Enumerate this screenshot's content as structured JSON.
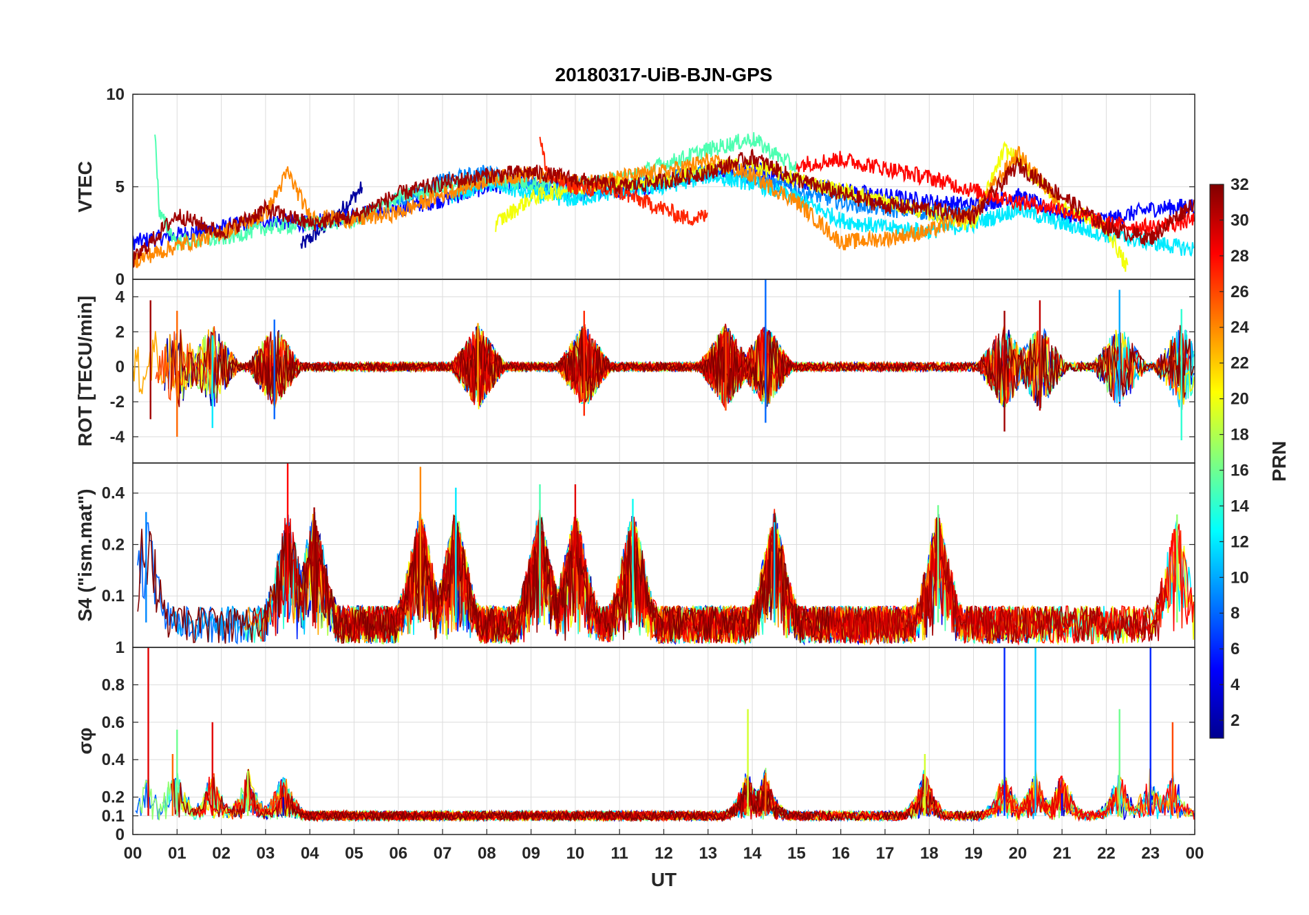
{
  "title": "20180317-UiB-BJN-GPS",
  "xlabel": "UT",
  "x_ticks": [
    "00",
    "01",
    "02",
    "03",
    "04",
    "05",
    "06",
    "07",
    "08",
    "09",
    "10",
    "11",
    "12",
    "13",
    "14",
    "15",
    "16",
    "17",
    "18",
    "19",
    "20",
    "21",
    "22",
    "23",
    "00"
  ],
  "colorbar": {
    "label": "PRN",
    "range": [
      1,
      32
    ],
    "ticks": [
      "2",
      "4",
      "6",
      "8",
      "10",
      "12",
      "14",
      "16",
      "18",
      "20",
      "22",
      "24",
      "26",
      "28",
      "30",
      "32"
    ],
    "colormap": "jet"
  },
  "chart_data": [
    {
      "type": "line",
      "panel": "VTEC",
      "ylabel": "VTEC",
      "ylim": [
        0,
        10
      ],
      "y_ticks": [
        "0",
        "5",
        "10"
      ],
      "x_unit": "hours UT",
      "grid": true,
      "series_note": "Multiple PRN traces colored by PRN number (colorbar)",
      "series": [
        {
          "prn": 2,
          "x": [
            3.8,
            4.5,
            5.2
          ],
          "y": [
            1.8,
            3.2,
            5.0
          ]
        },
        {
          "prn": 5,
          "x": [
            0,
            1,
            2,
            3,
            4,
            5,
            6,
            7,
            8,
            9,
            10,
            11,
            12,
            13,
            14,
            15,
            16,
            17,
            18,
            19,
            20,
            21,
            22,
            23,
            24
          ],
          "y": [
            2.0,
            2.4,
            2.8,
            3.2,
            3.0,
            3.5,
            3.8,
            4.3,
            5.0,
            5.2,
            5.0,
            4.8,
            5.2,
            5.8,
            6.0,
            5.2,
            4.8,
            4.5,
            4.2,
            4.0,
            4.5,
            3.5,
            3.2,
            3.8,
            4.0
          ]
        },
        {
          "prn": 9,
          "x": [
            5.9,
            7,
            8,
            9,
            10,
            11,
            12,
            13,
            14,
            15,
            16,
            17,
            18,
            19
          ],
          "y": [
            4.2,
            5.3,
            5.8,
            5.0,
            4.6,
            5.0,
            5.4,
            5.8,
            5.5,
            4.8,
            4.2,
            3.8,
            3.6,
            3.5
          ]
        },
        {
          "prn": 12,
          "x": [
            7.2,
            8,
            9,
            10,
            11,
            12,
            13,
            14,
            15,
            16,
            17,
            18,
            19,
            20,
            21,
            22,
            23,
            24
          ],
          "y": [
            4.5,
            5.2,
            4.6,
            4.3,
            4.8,
            5.0,
            5.6,
            5.2,
            4.4,
            3.2,
            2.8,
            2.6,
            3.0,
            3.8,
            3.0,
            2.4,
            2.0,
            1.6
          ]
        },
        {
          "prn": 15,
          "x": [
            0.5,
            0.6,
            1,
            2,
            3,
            4,
            5,
            6,
            7,
            8,
            9,
            10,
            11,
            12,
            13,
            14,
            15
          ],
          "y": [
            8.2,
            3.5,
            2.0,
            2.2,
            2.8,
            3.0,
            3.2,
            4.4,
            5.0,
            5.4,
            5.2,
            5.0,
            5.4,
            6.2,
            7.0,
            7.6,
            6.0
          ]
        },
        {
          "prn": 20,
          "x": [
            8.2,
            9,
            10,
            11,
            12,
            13,
            14,
            15,
            16,
            17,
            18,
            19,
            19.7,
            20,
            21,
            22,
            22.5
          ],
          "y": [
            3.0,
            4.4,
            5.0,
            5.2,
            5.4,
            6.0,
            6.2,
            5.4,
            4.8,
            4.2,
            3.6,
            3.0,
            7.0,
            6.5,
            4.0,
            2.8,
            0.5
          ]
        },
        {
          "prn": 24,
          "x": [
            0,
            1,
            2,
            3,
            3.5,
            4,
            5,
            6,
            7,
            8,
            9,
            10,
            11,
            12,
            13,
            14,
            15,
            16,
            17,
            18,
            19,
            20,
            21
          ],
          "y": [
            1.0,
            1.8,
            2.5,
            3.5,
            5.8,
            3.4,
            3.2,
            3.6,
            4.6,
            5.4,
            5.7,
            5.2,
            5.5,
            5.8,
            6.4,
            5.6,
            4.2,
            2.0,
            2.2,
            2.6,
            3.6,
            6.8,
            4.0
          ]
        },
        {
          "prn": 27,
          "x": [
            9.2,
            9.4,
            10,
            11,
            12,
            12.5,
            13
          ],
          "y": [
            7.5,
            5.5,
            5.0,
            4.7,
            3.8,
            3.3,
            3.4
          ]
        },
        {
          "prn": 28,
          "x": [
            15,
            16,
            17,
            18,
            19,
            20,
            21,
            22,
            23,
            24
          ],
          "y": [
            6.2,
            6.5,
            6.0,
            5.5,
            4.8,
            4.2,
            3.8,
            3.0,
            2.8,
            3.2
          ]
        },
        {
          "prn": 31,
          "x": [
            0,
            1,
            2,
            3,
            4,
            5,
            6,
            7,
            8,
            9,
            10,
            11,
            12,
            13,
            14,
            15,
            16,
            17,
            18,
            19,
            20,
            21,
            22,
            23,
            24
          ],
          "y": [
            1.0,
            3.5,
            2.5,
            3.8,
            3.0,
            3.4,
            4.6,
            5.2,
            5.6,
            5.8,
            5.4,
            5.0,
            5.3,
            5.8,
            6.6,
            5.4,
            4.6,
            4.0,
            3.8,
            3.4,
            6.2,
            4.5,
            2.8,
            2.2,
            4.2
          ]
        }
      ]
    },
    {
      "type": "line",
      "panel": "ROT",
      "ylabel": "ROT [TECU/min]",
      "ylim": [
        -5.5,
        5
      ],
      "y_ticks": [
        "-4",
        "-2",
        "0",
        "2",
        "4"
      ],
      "x_unit": "hours UT",
      "grid": true,
      "series_note": "Rate of TEC, fluctuating about 0 with bursts",
      "bursts": [
        {
          "x": 0.4,
          "y_min": -3.0,
          "y_max": 3.8
        },
        {
          "x": 1.0,
          "y_min": -4.0,
          "y_max": 3.2
        },
        {
          "x": 1.8,
          "y_min": -3.5,
          "y_max": 1.8
        },
        {
          "x": 3.2,
          "y_min": -3.0,
          "y_max": 2.7
        },
        {
          "x": 7.8,
          "y_min": -2.0,
          "y_max": 2.5
        },
        {
          "x": 10.2,
          "y_min": -2.8,
          "y_max": 3.2
        },
        {
          "x": 13.4,
          "y_min": -2.5,
          "y_max": 2.0
        },
        {
          "x": 14.3,
          "y_min": -3.2,
          "y_max": 5.0
        },
        {
          "x": 19.7,
          "y_min": -3.7,
          "y_max": 3.2
        },
        {
          "x": 20.5,
          "y_min": -2.5,
          "y_max": 3.8
        },
        {
          "x": 22.3,
          "y_min": -2.0,
          "y_max": 4.4
        },
        {
          "x": 23.7,
          "y_min": -4.2,
          "y_max": 3.3
        }
      ]
    },
    {
      "type": "line",
      "panel": "S4",
      "ylabel": "S4 (\"ism.mat\")",
      "ylim": [
        0.05,
        0.6
      ],
      "y_ticks": [
        "0.1",
        "0.2",
        "0.4"
      ],
      "y_scale": "log",
      "x_unit": "hours UT",
      "grid": true,
      "baseline": 0.07,
      "peaks": [
        {
          "x": 0.3,
          "y": 0.31
        },
        {
          "x": 3.5,
          "y": 0.6
        },
        {
          "x": 4.1,
          "y": 0.33
        },
        {
          "x": 6.5,
          "y": 0.57
        },
        {
          "x": 7.3,
          "y": 0.43
        },
        {
          "x": 9.2,
          "y": 0.45
        },
        {
          "x": 10.0,
          "y": 0.45
        },
        {
          "x": 11.3,
          "y": 0.37
        },
        {
          "x": 14.5,
          "y": 0.27
        },
        {
          "x": 18.2,
          "y": 0.34
        },
        {
          "x": 23.6,
          "y": 0.3
        }
      ]
    },
    {
      "type": "line",
      "panel": "sigma_phi",
      "ylabel": "σφ",
      "ylim": [
        0,
        1
      ],
      "y_ticks": [
        "0",
        "0.1",
        "0.2",
        "0.4",
        "0.6",
        "0.8",
        "1"
      ],
      "x_unit": "hours UT",
      "grid": true,
      "baseline": 0.1,
      "peaks": [
        {
          "x": 0.35,
          "y": 1.0
        },
        {
          "x": 1.0,
          "y": 0.56
        },
        {
          "x": 0.9,
          "y": 0.43
        },
        {
          "x": 1.8,
          "y": 0.6
        },
        {
          "x": 2.6,
          "y": 0.34
        },
        {
          "x": 3.4,
          "y": 0.2
        },
        {
          "x": 13.9,
          "y": 0.67
        },
        {
          "x": 14.3,
          "y": 0.33
        },
        {
          "x": 17.9,
          "y": 0.43
        },
        {
          "x": 19.7,
          "y": 1.0
        },
        {
          "x": 20.4,
          "y": 1.0
        },
        {
          "x": 21.0,
          "y": 0.22
        },
        {
          "x": 22.3,
          "y": 0.67
        },
        {
          "x": 23.0,
          "y": 1.0
        },
        {
          "x": 23.5,
          "y": 0.6
        }
      ]
    }
  ]
}
